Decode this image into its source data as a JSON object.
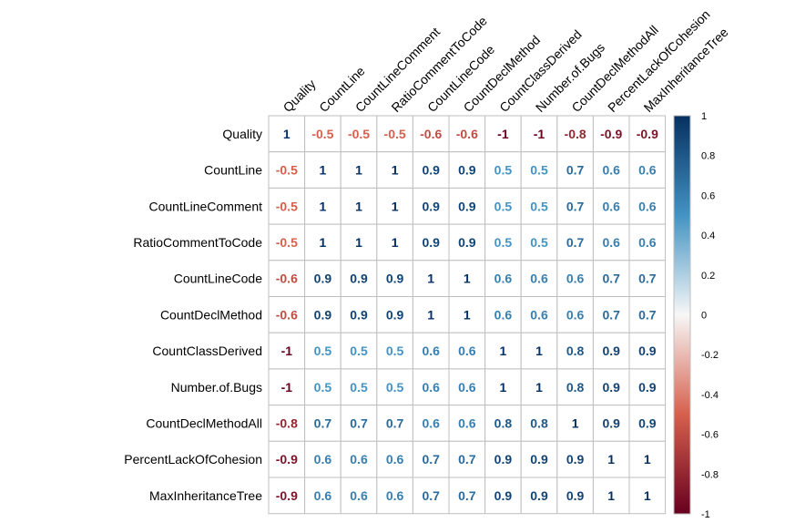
{
  "chart_data": {
    "type": "heatmap",
    "variables": [
      "Quality",
      "CountLine",
      "CountLineComment",
      "RatioCommentToCode",
      "CountLineCode",
      "CountDeclMethod",
      "CountClassDerived",
      "Number.of.Bugs",
      "CountDeclMethodAll",
      "PercentLackOfCohesion",
      "MaxInheritanceTree"
    ],
    "matrix": [
      [
        1,
        -0.5,
        -0.5,
        -0.5,
        -0.6,
        -0.6,
        -1,
        -1,
        -0.8,
        -0.9,
        -0.9
      ],
      [
        -0.5,
        1,
        1,
        1,
        0.9,
        0.9,
        0.5,
        0.5,
        0.7,
        0.6,
        0.6
      ],
      [
        -0.5,
        1,
        1,
        1,
        0.9,
        0.9,
        0.5,
        0.5,
        0.7,
        0.6,
        0.6
      ],
      [
        -0.5,
        1,
        1,
        1,
        0.9,
        0.9,
        0.5,
        0.5,
        0.7,
        0.6,
        0.6
      ],
      [
        -0.6,
        0.9,
        0.9,
        0.9,
        1,
        1,
        0.6,
        0.6,
        0.6,
        0.7,
        0.7
      ],
      [
        -0.6,
        0.9,
        0.9,
        0.9,
        1,
        1,
        0.6,
        0.6,
        0.6,
        0.7,
        0.7
      ],
      [
        -1,
        0.5,
        0.5,
        0.5,
        0.6,
        0.6,
        1,
        1,
        0.8,
        0.9,
        0.9
      ],
      [
        -1,
        0.5,
        0.5,
        0.5,
        0.6,
        0.6,
        1,
        1,
        0.8,
        0.9,
        0.9
      ],
      [
        -0.8,
        0.7,
        0.7,
        0.7,
        0.6,
        0.6,
        0.8,
        0.8,
        1,
        0.9,
        0.9
      ],
      [
        -0.9,
        0.6,
        0.6,
        0.6,
        0.7,
        0.7,
        0.9,
        0.9,
        0.9,
        1,
        1
      ],
      [
        -0.9,
        0.6,
        0.6,
        0.6,
        0.7,
        0.7,
        0.9,
        0.9,
        0.9,
        1,
        1
      ]
    ],
    "value_range": [
      -1,
      1
    ],
    "colorbar": {
      "ticks": [
        "1",
        "0.8",
        "0.6",
        "0.4",
        "0.2",
        "0",
        "-0.2",
        "-0.4",
        "-0.6",
        "-0.8",
        "-1"
      ],
      "placement": "right"
    },
    "colors": {
      "neg_strong": "#67001F",
      "neg_mid": "#D6604D",
      "neutral": "#F7F7F7",
      "pos_mid": "#4393C3",
      "pos_strong": "#053061"
    },
    "grid": true
  }
}
